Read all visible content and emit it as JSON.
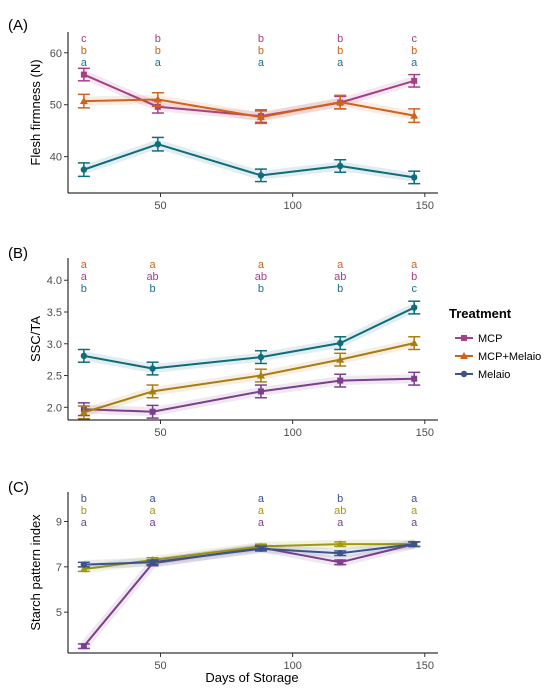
{
  "x_axis_title": "Days of Storage",
  "legend": {
    "title": "Treatment",
    "entries": [
      {
        "label": "MCP",
        "color": "#A53F86",
        "marker": "square"
      },
      {
        "label": "MCP+Melaio",
        "color": "#D0621C",
        "marker": "triangle"
      },
      {
        "label": "Melaio",
        "color": "#3B528B",
        "marker": "circle"
      }
    ]
  },
  "chart_data": [
    {
      "type": "line",
      "panel_label": "(A)",
      "ylabel": "Flesh firmness (N)",
      "xlim": [
        15,
        155
      ],
      "ylim": [
        33,
        64
      ],
      "x_ticks": [
        50,
        100,
        150
      ],
      "y_ticks": [
        40,
        50,
        60
      ],
      "x": [
        21,
        49,
        88,
        118,
        146
      ],
      "series": [
        {
          "name": "MCP",
          "color": "#A53F86",
          "marker": "square",
          "values": [
            55.8,
            49.6,
            47.8,
            50.4,
            54.6
          ],
          "errors": [
            1.2,
            1.2,
            1.2,
            1.2,
            1.2
          ]
        },
        {
          "name": "MCP+Melaio",
          "color": "#D0621C",
          "marker": "triangle",
          "values": [
            50.7,
            51.0,
            47.6,
            50.5,
            47.9
          ],
          "errors": [
            1.3,
            1.3,
            1.2,
            1.3,
            1.3
          ]
        },
        {
          "name": "Melaio",
          "color": "#0F6C7A",
          "marker": "circle",
          "values": [
            37.5,
            42.4,
            36.4,
            38.2,
            36.0
          ],
          "errors": [
            1.3,
            1.3,
            1.2,
            1.2,
            1.2
          ]
        }
      ],
      "letter_rows": [
        {
          "color": "#A53F86",
          "letters": [
            "c",
            "b",
            "b",
            "b",
            "c"
          ]
        },
        {
          "color": "#D0621C",
          "letters": [
            "b",
            "b",
            "b",
            "b",
            "b"
          ]
        },
        {
          "color": "#1F6E8C",
          "letters": [
            "a",
            "a",
            "a",
            "a",
            "a"
          ]
        }
      ],
      "grid": false
    },
    {
      "type": "line",
      "panel_label": "(B)",
      "ylabel": "SSC/TA",
      "xlim": [
        15,
        155
      ],
      "ylim": [
        1.8,
        4.35
      ],
      "x_ticks": [
        50,
        100,
        150
      ],
      "y_ticks": [
        2.0,
        2.5,
        3.0,
        3.5,
        4.0
      ],
      "y_tick_labels": [
        "2.0",
        "2.5",
        "3.0",
        "3.5",
        "4.0"
      ],
      "x": [
        21,
        47,
        88,
        118,
        146
      ],
      "series": [
        {
          "name": "MCP",
          "color": "#7B3F8C",
          "marker": "square",
          "values": [
            1.97,
            1.93,
            2.25,
            2.42,
            2.45
          ],
          "errors": [
            0.1,
            0.1,
            0.1,
            0.1,
            0.1
          ]
        },
        {
          "name": "MCP+Melaio",
          "color": "#A97D12",
          "marker": "triangle",
          "values": [
            1.92,
            2.25,
            2.5,
            2.75,
            3.01
          ],
          "errors": [
            0.1,
            0.1,
            0.1,
            0.1,
            0.1
          ]
        },
        {
          "name": "Melaio",
          "color": "#0F6C7A",
          "marker": "circle",
          "values": [
            2.81,
            2.61,
            2.79,
            3.01,
            3.57
          ],
          "errors": [
            0.1,
            0.1,
            0.1,
            0.1,
            0.1
          ]
        }
      ],
      "letter_rows": [
        {
          "color": "#D0621C",
          "letters": [
            "a",
            "a",
            "a",
            "a",
            "a"
          ]
        },
        {
          "color": "#A53F86",
          "letters": [
            "a",
            "ab",
            "ab",
            "ab",
            "b"
          ]
        },
        {
          "color": "#1F6E8C",
          "letters": [
            "b",
            "b",
            "b",
            "b",
            "c"
          ]
        }
      ],
      "grid": false
    },
    {
      "type": "line",
      "panel_label": "(C)",
      "ylabel": "Starch pattern index",
      "xlim": [
        15,
        155
      ],
      "ylim": [
        3.2,
        10.3
      ],
      "x_ticks": [
        50,
        100,
        150
      ],
      "y_ticks": [
        5,
        7,
        9
      ],
      "x": [
        21,
        47,
        88,
        118,
        146
      ],
      "series": [
        {
          "name": "MCP",
          "color": "#7B3F8C",
          "marker": "square",
          "values": [
            3.5,
            7.15,
            7.85,
            7.2,
            8.0
          ],
          "errors": [
            0.1,
            0.1,
            0.1,
            0.1,
            0.1
          ]
        },
        {
          "name": "MCP+Melaio",
          "color": "#A09A10",
          "marker": "triangle",
          "values": [
            6.9,
            7.3,
            7.9,
            8.0,
            8.0
          ],
          "errors": [
            0.1,
            0.1,
            0.1,
            0.1,
            0.1
          ]
        },
        {
          "name": "Melaio",
          "color": "#3B528B",
          "marker": "circle",
          "values": [
            7.1,
            7.2,
            7.8,
            7.6,
            8.0
          ],
          "errors": [
            0.1,
            0.1,
            0.1,
            0.1,
            0.1
          ]
        }
      ],
      "letter_rows": [
        {
          "color": "#3B528B",
          "letters": [
            "b",
            "a",
            "a",
            "b",
            "a"
          ]
        },
        {
          "color": "#A09A10",
          "letters": [
            "b",
            "a",
            "a",
            "ab",
            "a"
          ]
        },
        {
          "color": "#7B3F8C",
          "letters": [
            "a",
            "a",
            "a",
            "a",
            "a"
          ]
        }
      ],
      "grid": false
    }
  ]
}
